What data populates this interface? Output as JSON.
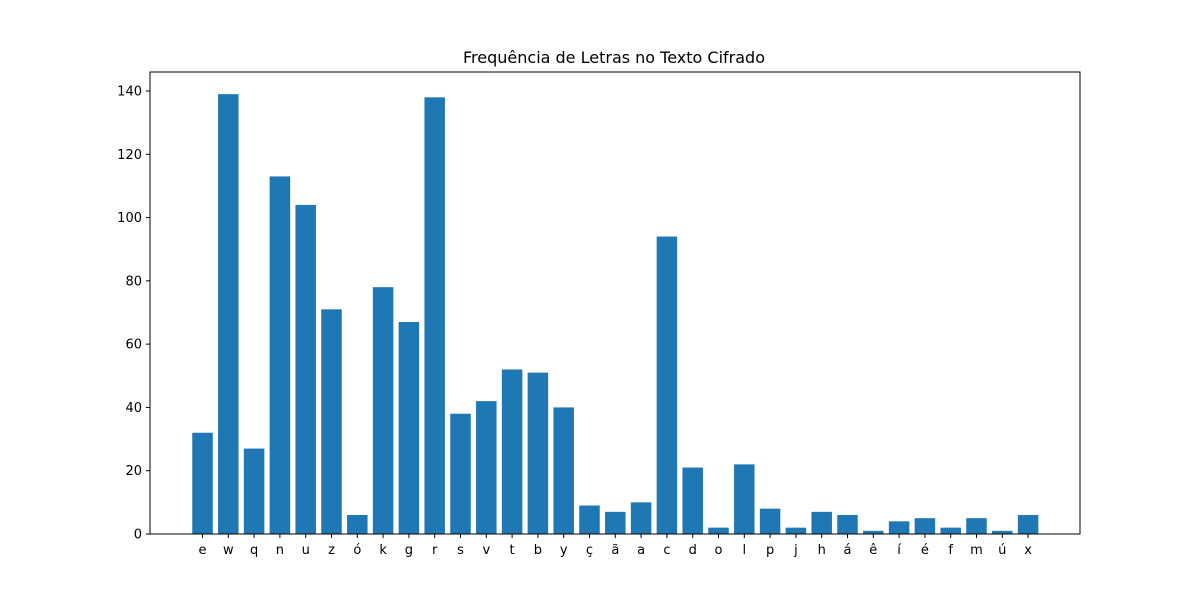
{
  "chart_data": {
    "type": "bar",
    "title": "Frequência de Letras no Texto Cifrado",
    "xlabel": "",
    "ylabel": "",
    "categories": [
      "e",
      "w",
      "q",
      "n",
      "u",
      "z",
      "ó",
      "k",
      "g",
      "r",
      "s",
      "v",
      "t",
      "b",
      "y",
      "ç",
      "ã",
      "a",
      "c",
      "d",
      "o",
      "l",
      "p",
      "j",
      "h",
      "á",
      "ê",
      "í",
      "é",
      "f",
      "m",
      "ú",
      "x"
    ],
    "values": [
      32,
      139,
      27,
      113,
      104,
      71,
      6,
      78,
      67,
      138,
      38,
      42,
      52,
      51,
      40,
      9,
      7,
      10,
      94,
      21,
      2,
      22,
      8,
      2,
      7,
      6,
      1,
      4,
      5,
      2,
      5,
      1,
      6
    ],
    "ylim": [
      0,
      146
    ],
    "yticks": [
      0,
      20,
      40,
      60,
      80,
      100,
      120,
      140
    ],
    "grid": false,
    "legend": "none",
    "bar_color": "#1f77b4"
  }
}
